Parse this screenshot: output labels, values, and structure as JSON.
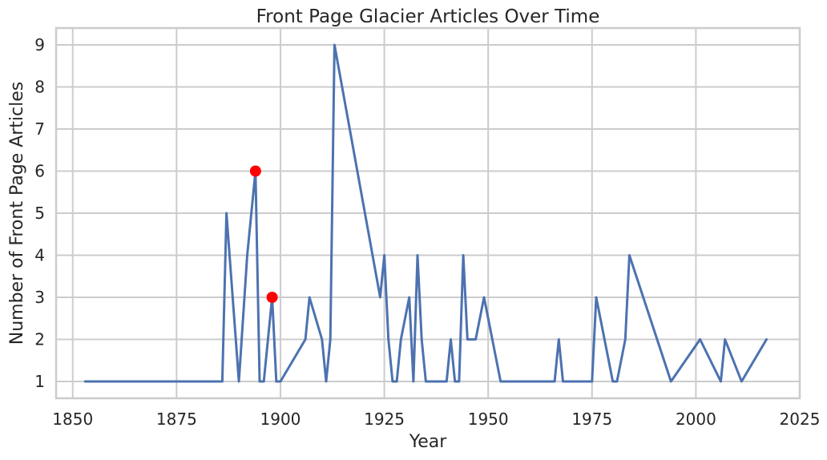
{
  "chart_data": {
    "type": "line",
    "title": "Front Page Glacier Articles Over Time",
    "xlabel": "Year",
    "ylabel": "Number of Front Page Articles",
    "xlim": [
      1846,
      2025
    ],
    "ylim": [
      0.6,
      9.4
    ],
    "xticks": [
      1850,
      1875,
      1900,
      1925,
      1950,
      1975,
      2000,
      2025
    ],
    "yticks": [
      1,
      2,
      3,
      4,
      5,
      6,
      7,
      8,
      9
    ],
    "grid": true,
    "series": [
      {
        "name": "Front Page Articles",
        "color": "#4c72b0",
        "x": [
          1853,
          1886,
          1887,
          1890,
          1892,
          1894,
          1895,
          1896,
          1898,
          1899,
          1900,
          1906,
          1907,
          1910,
          1911,
          1912,
          1913,
          1924,
          1925,
          1926,
          1927,
          1928,
          1929,
          1931,
          1932,
          1933,
          1934,
          1935,
          1940,
          1941,
          1942,
          1943,
          1944,
          1945,
          1947,
          1949,
          1953,
          1966,
          1967,
          1968,
          1975,
          1976,
          1980,
          1981,
          1983,
          1984,
          1994,
          2001,
          2006,
          2007,
          2011,
          2017
        ],
        "y": [
          1,
          1,
          5,
          1,
          4,
          6,
          1,
          1,
          3,
          1,
          1,
          2,
          3,
          2,
          1,
          2,
          9,
          3,
          4,
          2,
          1,
          1,
          2,
          3,
          1,
          4,
          2,
          1,
          1,
          2,
          1,
          1,
          4,
          2,
          2,
          3,
          1,
          1,
          2,
          1,
          1,
          3,
          1,
          1,
          2,
          4,
          1,
          2,
          1,
          2,
          1,
          2
        ]
      }
    ],
    "highlights": [
      {
        "x": 1894,
        "y": 6,
        "color": "#ff0000"
      },
      {
        "x": 1898,
        "y": 3,
        "color": "#ff0000"
      }
    ]
  }
}
